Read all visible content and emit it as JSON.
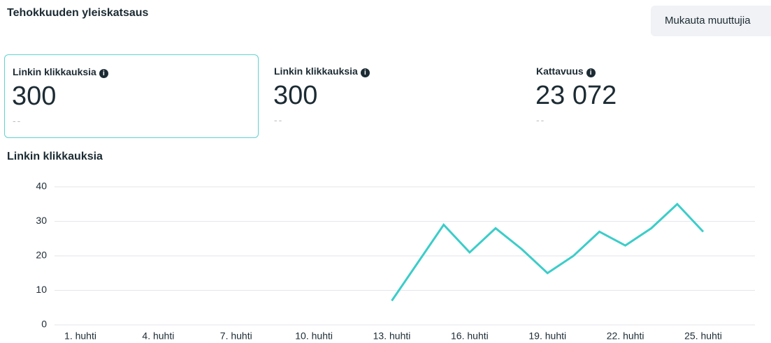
{
  "header": {
    "title": "Tehokkuuden yleiskatsaus",
    "button": "Mukauta muuttujia"
  },
  "metrics": [
    {
      "label": "Linkin klikkauksia",
      "value": "300",
      "change": "--"
    },
    {
      "label": "Linkin klikkauksia",
      "value": "300",
      "change": "--"
    },
    {
      "label": "Kattavuus",
      "value": "23 072",
      "change": "--"
    }
  ],
  "chart_data": {
    "type": "line",
    "title": "Linkin klikkauksia",
    "categories": [
      "1. huhti",
      null,
      null,
      "4. huhti",
      null,
      null,
      "7. huhti",
      null,
      null,
      "10. huhti",
      null,
      null,
      "13. huhti",
      null,
      null,
      "16. huhti",
      null,
      null,
      "19. huhti",
      null,
      null,
      "22. huhti",
      null,
      null,
      "25. huhti"
    ],
    "values": [
      null,
      null,
      null,
      null,
      null,
      null,
      null,
      null,
      null,
      null,
      null,
      null,
      7,
      18,
      29,
      21,
      28,
      22,
      15,
      20,
      27,
      23,
      28,
      35,
      27
    ],
    "color": "#3ccdc9",
    "ylim": [
      0,
      40
    ],
    "yticks": [
      0,
      10,
      20,
      30,
      40
    ],
    "grid": true
  }
}
